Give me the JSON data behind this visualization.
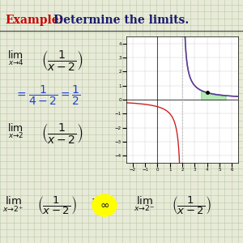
{
  "title_example": "Example:",
  "title_rest": "  Determine the limits.",
  "bg_color": "#e8ead8",
  "grid_color": "#b8c8a8",
  "title_example_color": "#cc0000",
  "title_rest_color": "#1a1a6e",
  "math_color": "#1a1a6e",
  "blue_color": "#2244cc",
  "highlight_color": "#ffff00",
  "plot_xlim": [
    -2.5,
    6.5
  ],
  "plot_ylim": [
    -4.5,
    4.5
  ],
  "plot_bg": "#ffffff"
}
